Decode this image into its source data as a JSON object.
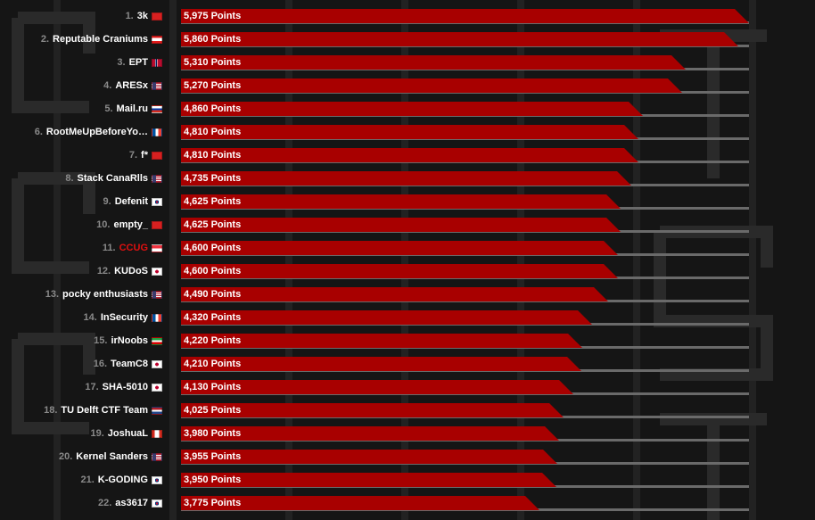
{
  "leaderboard": {
    "max_points": 5975,
    "teams": [
      {
        "rank": "1.",
        "name": "3k",
        "points": "5,975 Points",
        "value": 5975,
        "flag": "flag-red",
        "highlight": false
      },
      {
        "rank": "2.",
        "name": "Reputable Craniums",
        "points": "5,860 Points",
        "value": 5860,
        "flag": "flag-lebanon",
        "highlight": false
      },
      {
        "rank": "3.",
        "name": "EPT",
        "points": "5,310 Points",
        "value": 5310,
        "flag": "flag-norway",
        "highlight": false
      },
      {
        "rank": "4.",
        "name": "ARESx",
        "points": "5,270 Points",
        "value": 5270,
        "flag": "flag-usa",
        "highlight": false
      },
      {
        "rank": "5.",
        "name": "Mail.ru",
        "points": "4,860 Points",
        "value": 4860,
        "flag": "flag-russia",
        "highlight": false
      },
      {
        "rank": "6.",
        "name": "RootMeUpBeforeYo…",
        "points": "4,810 Points",
        "value": 4810,
        "flag": "flag-france",
        "highlight": false
      },
      {
        "rank": "7.",
        "name": "f*",
        "points": "4,810 Points",
        "value": 4810,
        "flag": "flag-red",
        "highlight": false
      },
      {
        "rank": "8.",
        "name": "Stack CanaRlls",
        "points": "4,735 Points",
        "value": 4735,
        "flag": "flag-usa",
        "highlight": false
      },
      {
        "rank": "9.",
        "name": "Defenit",
        "points": "4,625 Points",
        "value": 4625,
        "flag": "flag-korea",
        "highlight": false
      },
      {
        "rank": "10.",
        "name": "empty_",
        "points": "4,625 Points",
        "value": 4625,
        "flag": "flag-red",
        "highlight": false
      },
      {
        "rank": "11.",
        "name": "CCUG",
        "points": "4,600 Points",
        "value": 4600,
        "flag": "flag-singapore",
        "highlight": true
      },
      {
        "rank": "12.",
        "name": "KUDoS",
        "points": "4,600 Points",
        "value": 4600,
        "flag": "flag-japan",
        "highlight": false
      },
      {
        "rank": "13.",
        "name": "pocky enthusiasts",
        "points": "4,490 Points",
        "value": 4490,
        "flag": "flag-usa",
        "highlight": false
      },
      {
        "rank": "14.",
        "name": "InSecurity",
        "points": "4,320 Points",
        "value": 4320,
        "flag": "flag-france",
        "highlight": false
      },
      {
        "rank": "15.",
        "name": "irNoobs",
        "points": "4,220 Points",
        "value": 4220,
        "flag": "flag-iran",
        "highlight": false
      },
      {
        "rank": "16.",
        "name": "TeamC8",
        "points": "4,210 Points",
        "value": 4210,
        "flag": "flag-japan",
        "highlight": false
      },
      {
        "rank": "17.",
        "name": "SHA-5010",
        "points": "4,130 Points",
        "value": 4130,
        "flag": "flag-japan",
        "highlight": false
      },
      {
        "rank": "18.",
        "name": "TU Delft CTF Team",
        "points": "4,025 Points",
        "value": 4025,
        "flag": "flag-netherlands",
        "highlight": false
      },
      {
        "rank": "19.",
        "name": "JoshuaL",
        "points": "3,980 Points",
        "value": 3980,
        "flag": "flag-canada",
        "highlight": false
      },
      {
        "rank": "20.",
        "name": "Kernel Sanders",
        "points": "3,955 Points",
        "value": 3955,
        "flag": "flag-usa",
        "highlight": false
      },
      {
        "rank": "21.",
        "name": "K-GODING",
        "points": "3,950 Points",
        "value": 3950,
        "flag": "flag-korea",
        "highlight": false
      },
      {
        "rank": "22.",
        "name": "as3617",
        "points": "3,775 Points",
        "value": 3775,
        "flag": "flag-korea",
        "highlight": false
      }
    ]
  },
  "colors": {
    "bar": "#a80000",
    "track": "#6a6a6a",
    "highlight_name": "#e01010"
  }
}
